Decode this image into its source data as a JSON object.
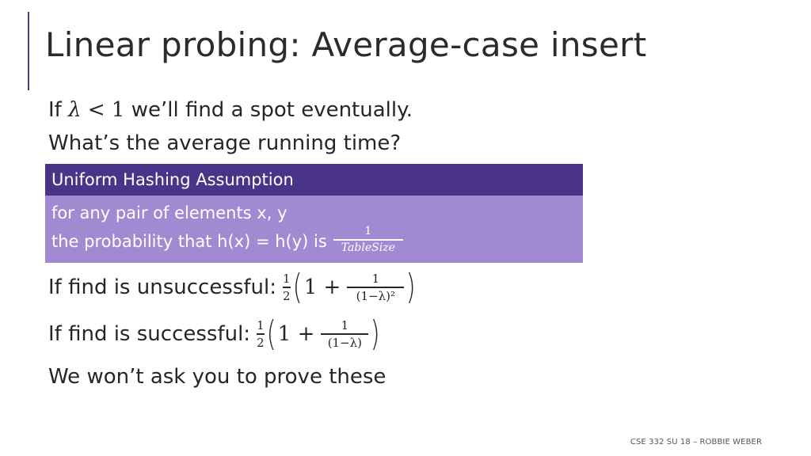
{
  "slide": {
    "title": "Linear probing: Average-case insert",
    "line1_prefix": "If",
    "line1_lambda": "λ",
    "line1_lt": "<",
    "line1_one": "1",
    "line1_suffix": "we’ll find a spot eventually.",
    "line2": "What’s the average running time?",
    "uha": {
      "header": "Uniform Hashing Assumption",
      "line1": "for any pair of elements x, y",
      "line2": "the probability that h(x) = h(y) is",
      "frac_num": "1",
      "frac_den": "TableSize"
    },
    "unsuccessful": {
      "label": "If find is unsuccessful:",
      "half_num": "1",
      "half_den": "2",
      "one_plus": "1 +",
      "inner_num": "1",
      "inner_den": "(1−λ)²"
    },
    "successful": {
      "label": "If find is successful:",
      "half_num": "1",
      "half_den": "2",
      "one_plus": "1 +",
      "inner_num": "1",
      "inner_den": "(1−λ)"
    },
    "closing": "We won’t ask you to prove these",
    "footer": "CSE 332 SU 18 – ROBBIE WEBER"
  }
}
